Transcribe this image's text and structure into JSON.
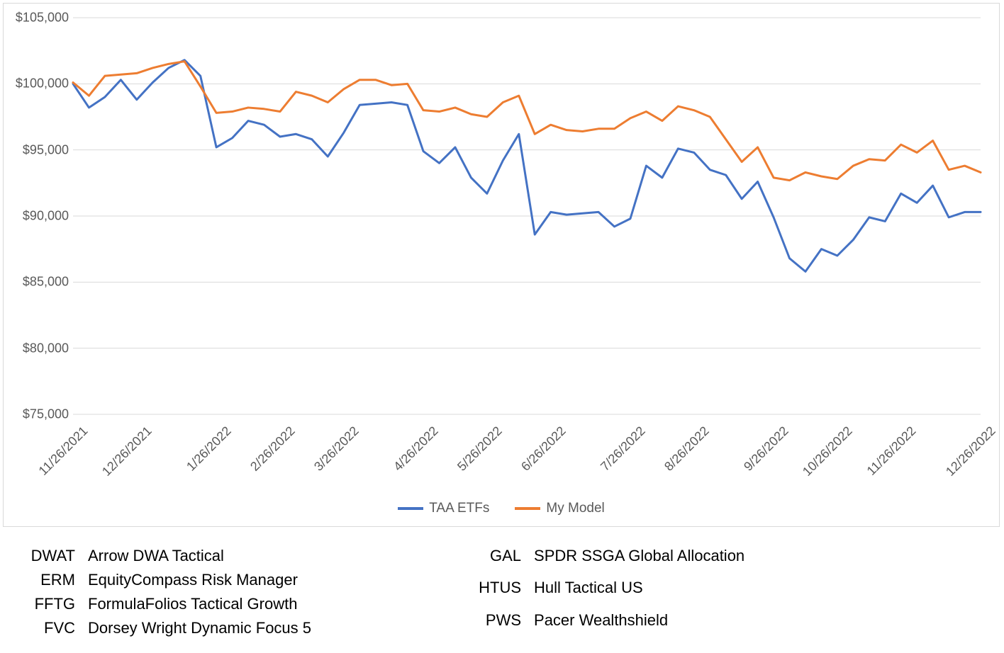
{
  "chart": {
    "type": "line",
    "background_color": "#ffffff",
    "border_color": "#d9d9d9",
    "grid_color": "#d9d9d9",
    "axis_text_color": "#595959",
    "axis_fontsize": 18,
    "legend_fontsize": 19,
    "line_width": 3,
    "ylim": [
      75000,
      105000
    ],
    "ytick_step": 5000,
    "y_ticks": [
      {
        "value": 105000,
        "label": "$105,000"
      },
      {
        "value": 100000,
        "label": "$100,000"
      },
      {
        "value": 95000,
        "label": "$95,000"
      },
      {
        "value": 90000,
        "label": "$90,000"
      },
      {
        "value": 85000,
        "label": "$85,000"
      },
      {
        "value": 80000,
        "label": "$80,000"
      },
      {
        "value": 75000,
        "label": "$75,000"
      }
    ],
    "x_ticks": [
      {
        "index": 0,
        "label": "11/26/2021"
      },
      {
        "index": 4,
        "label": "12/26/2021"
      },
      {
        "index": 9,
        "label": "1/26/2022"
      },
      {
        "index": 13,
        "label": "2/26/2022"
      },
      {
        "index": 17,
        "label": "3/26/2022"
      },
      {
        "index": 22,
        "label": "4/26/2022"
      },
      {
        "index": 26,
        "label": "5/26/2022"
      },
      {
        "index": 30,
        "label": "6/26/2022"
      },
      {
        "index": 35,
        "label": "7/26/2022"
      },
      {
        "index": 39,
        "label": "8/26/2022"
      },
      {
        "index": 44,
        "label": "9/26/2022"
      },
      {
        "index": 48,
        "label": "10/26/2022"
      },
      {
        "index": 52,
        "label": "11/26/2022"
      },
      {
        "index": 57,
        "label": "12/26/2022"
      }
    ],
    "x_count": 58,
    "series": [
      {
        "name": "TAA ETFs",
        "color": "#4472c4",
        "values": [
          100000,
          98200,
          99000,
          100300,
          98800,
          100100,
          101200,
          101800,
          100600,
          95200,
          95900,
          97200,
          96900,
          96000,
          96200,
          95800,
          94500,
          96300,
          98400,
          98500,
          98600,
          98400,
          94900,
          94000,
          95200,
          92900,
          91700,
          94200,
          96200,
          88600,
          90300,
          90100,
          90200,
          90300,
          89200,
          89800,
          93800,
          92900,
          95100,
          94800,
          93500,
          93100,
          91300,
          92600,
          89900,
          86800,
          85800,
          87500,
          87000,
          88200,
          89900,
          89600,
          91700,
          91000,
          92300,
          89900,
          90300,
          90300
        ]
      },
      {
        "name": "My Model",
        "color": "#ed7d31",
        "values": [
          100100,
          99100,
          100600,
          100700,
          100800,
          101200,
          101500,
          101700,
          99800,
          97800,
          97900,
          98200,
          98100,
          97900,
          99400,
          99100,
          98600,
          99600,
          100300,
          100300,
          99900,
          100000,
          98000,
          97900,
          98200,
          97700,
          97500,
          98600,
          99100,
          96200,
          96900,
          96500,
          96400,
          96600,
          96600,
          97400,
          97900,
          97200,
          98300,
          98000,
          97500,
          95800,
          94100,
          95200,
          92900,
          92700,
          93300,
          93000,
          92800,
          93800,
          94300,
          94200,
          95400,
          94800,
          95700,
          93500,
          93800,
          93300
        ]
      }
    ],
    "legend": [
      {
        "label": "TAA ETFs",
        "color": "#4472c4"
      },
      {
        "label": "My Model",
        "color": "#ed7d31"
      }
    ]
  },
  "footer": {
    "fontsize": 22,
    "text_color": "#000000",
    "left": [
      {
        "ticker": "DWAT",
        "name": "Arrow DWA Tactical"
      },
      {
        "ticker": "ERM",
        "name": "EquityCompass Risk Manager"
      },
      {
        "ticker": "FFTG",
        "name": "FormulaFolios Tactical Growth"
      },
      {
        "ticker": "FVC",
        "name": "Dorsey Wright Dynamic Focus 5"
      }
    ],
    "right": [
      {
        "ticker": "GAL",
        "name": "SPDR SSGA Global Allocation"
      },
      {
        "ticker": "HTUS",
        "name": "Hull Tactical US"
      },
      {
        "ticker": "PWS",
        "name": "Pacer Wealthshield"
      }
    ]
  }
}
